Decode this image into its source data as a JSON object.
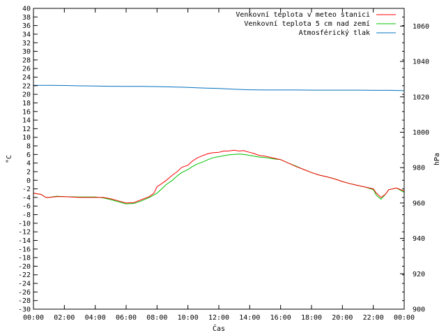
{
  "chart_data": {
    "type": "line",
    "title": "",
    "xlabel": "Čas",
    "ylabel_left": "°C",
    "ylabel_right": "hPa",
    "x_ticks": [
      "00:00",
      "02:00",
      "04:00",
      "06:00",
      "08:00",
      "10:00",
      "12:00",
      "14:00",
      "16:00",
      "18:00",
      "20:00",
      "22:00",
      "00:00"
    ],
    "y_left_ticks": [
      40,
      38,
      36,
      34,
      32,
      30,
      28,
      26,
      24,
      22,
      20,
      18,
      16,
      14,
      12,
      10,
      8,
      6,
      4,
      2,
      0,
      -2,
      -4,
      -6,
      -8,
      -10,
      -12,
      -14,
      -16,
      -18,
      -20,
      -22,
      -24,
      -26,
      -28,
      -30
    ],
    "y_right_ticks": [
      1060,
      1040,
      1020,
      1000,
      980,
      960,
      940,
      920,
      900
    ],
    "x_range_hours": [
      0,
      24
    ],
    "y_left_range": [
      -30,
      40
    ],
    "y_right_range": [
      900,
      1070
    ],
    "grid": false,
    "legend_position": "top-right",
    "series": [
      {
        "name": "Venkovní teplota v meteo stanici",
        "axis": "left",
        "color": "#ff0000",
        "x": [
          0,
          0.5,
          0.8,
          1,
          1.5,
          2,
          3,
          4,
          4.5,
          5,
          5.5,
          6,
          6.5,
          7,
          7.5,
          7.8,
          8,
          8.3,
          8.6,
          9,
          9.3,
          9.6,
          10,
          10.3,
          10.6,
          11,
          11.3,
          11.6,
          12,
          12.3,
          12.6,
          13,
          13.3,
          13.6,
          14,
          14.3,
          14.6,
          15,
          15.5,
          16,
          16.5,
          17,
          17.5,
          18,
          18.5,
          19,
          19.5,
          20,
          20.5,
          21,
          21.5,
          22,
          22.2,
          22.5,
          22.8,
          23,
          23.5,
          24
        ],
        "y": [
          -3.0,
          -3.3,
          -4.0,
          -4.0,
          -3.8,
          -3.8,
          -4.0,
          -4.0,
          -4.0,
          -4.3,
          -4.8,
          -5.3,
          -5.2,
          -4.5,
          -3.8,
          -3.0,
          -1.5,
          -0.8,
          0.0,
          1.2,
          2.0,
          3.0,
          3.5,
          4.5,
          5.2,
          5.8,
          6.2,
          6.4,
          6.5,
          6.8,
          6.8,
          7.0,
          6.8,
          6.9,
          6.5,
          6.2,
          5.8,
          5.6,
          5.2,
          4.8,
          4.0,
          3.2,
          2.5,
          1.8,
          1.2,
          0.8,
          0.3,
          -0.3,
          -0.8,
          -1.2,
          -1.6,
          -2.0,
          -3.0,
          -4.0,
          -3.2,
          -2.2,
          -1.8,
          -2.5
        ]
      },
      {
        "name": "Venkovní teplota 5 cm nad zemí",
        "axis": "left",
        "color": "#00c000",
        "x": [
          0,
          0.5,
          0.8,
          1,
          1.5,
          2,
          3,
          4,
          4.5,
          5,
          5.5,
          6,
          6.5,
          7,
          7.5,
          8,
          8.3,
          8.6,
          9,
          9.3,
          9.6,
          10,
          10.3,
          10.6,
          11,
          11.3,
          11.6,
          12,
          12.3,
          12.6,
          13,
          13.3,
          13.6,
          14,
          14.3,
          14.6,
          15,
          15.5,
          16,
          16.5,
          17,
          17.5,
          18,
          18.5,
          19,
          19.5,
          20,
          20.5,
          21,
          21.5,
          22,
          22.2,
          22.5,
          22.8,
          23,
          23.5,
          24
        ],
        "y": [
          -3.0,
          -3.3,
          -4.0,
          -4.0,
          -3.7,
          -3.8,
          -3.9,
          -3.9,
          -4.1,
          -4.5,
          -5.0,
          -5.5,
          -5.4,
          -4.8,
          -4.0,
          -3.0,
          -2.0,
          -1.0,
          0.0,
          1.0,
          1.8,
          2.5,
          3.2,
          3.8,
          4.3,
          4.8,
          5.2,
          5.5,
          5.7,
          5.9,
          6.0,
          6.1,
          6.0,
          5.8,
          5.6,
          5.4,
          5.3,
          5.0,
          4.8,
          4.0,
          3.3,
          2.5,
          1.8,
          1.2,
          0.8,
          0.3,
          -0.3,
          -0.8,
          -1.2,
          -1.6,
          -2.2,
          -3.5,
          -4.4,
          -3.2,
          -2.2,
          -1.8,
          -2.8
        ]
      },
      {
        "name": "Atmosférický tlak",
        "axis": "right",
        "color": "#0070c0",
        "x": [
          0,
          1,
          2,
          3,
          4,
          5,
          6,
          7,
          8,
          9,
          10,
          11,
          12,
          13,
          14,
          15,
          16,
          17,
          18,
          19,
          20,
          21,
          22,
          23,
          24
        ],
        "y": [
          1026.5,
          1026.5,
          1026.4,
          1026.2,
          1026.1,
          1026.0,
          1025.9,
          1025.9,
          1025.8,
          1025.6,
          1025.3,
          1025.0,
          1024.7,
          1024.3,
          1024.0,
          1023.9,
          1023.9,
          1023.9,
          1023.8,
          1023.8,
          1023.8,
          1023.8,
          1023.7,
          1023.7,
          1023.5
        ]
      }
    ]
  }
}
